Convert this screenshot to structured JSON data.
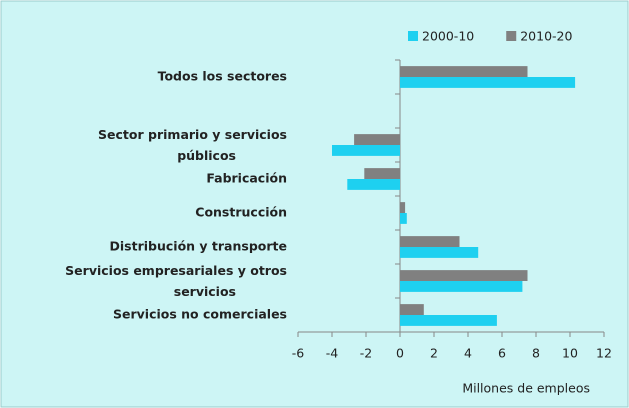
{
  "chart_data": {
    "type": "bar",
    "orientation": "horizontal",
    "categories": [
      "Todos los sectores",
      null,
      "Sector primario y servicios públicos",
      "Fabricación",
      "Construcción",
      "Distribución y transporte",
      "Servicios empresariales y otros servicios",
      "Servicios no comerciales"
    ],
    "series": [
      {
        "name": "2000-10",
        "color": "#1ed0f0",
        "values": [
          10.3,
          null,
          -4.0,
          -3.1,
          0.4,
          4.6,
          7.2,
          5.7
        ]
      },
      {
        "name": "2010-20",
        "color": "#808080",
        "values": [
          7.5,
          null,
          -2.7,
          -2.1,
          0.3,
          3.5,
          7.5,
          1.4
        ]
      }
    ],
    "xlabel": "Millones de empleos",
    "xlim": [
      -6,
      12
    ],
    "xticks": [
      -6,
      -4,
      -2,
      0,
      2,
      4,
      6,
      8,
      10,
      12
    ],
    "legend": "top-right",
    "grid": false
  }
}
